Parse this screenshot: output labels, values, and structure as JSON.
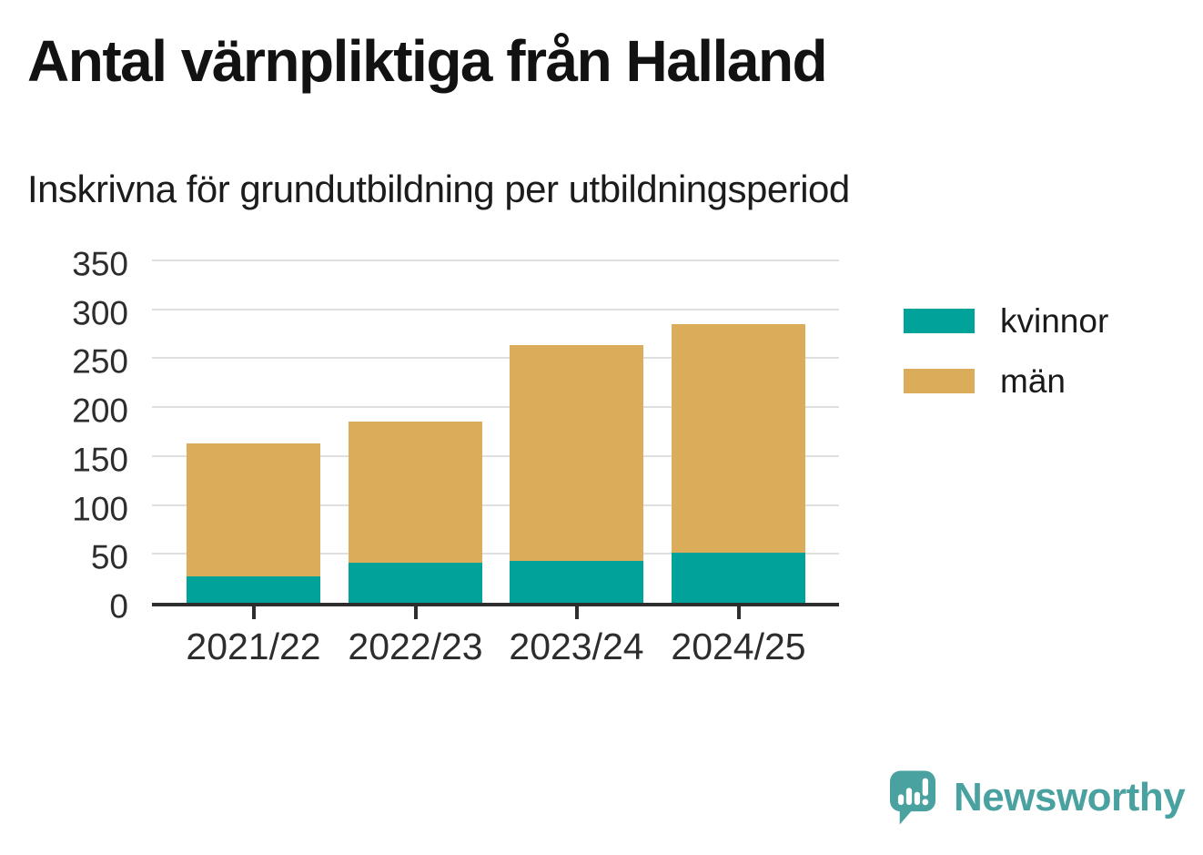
{
  "title": "Antal värnpliktiga från Halland",
  "subtitle": "Inskrivna för grundutbildning per utbildningsperiod",
  "chart_data": {
    "type": "bar",
    "stacked": true,
    "title": "Antal värnpliktiga från Halland",
    "subtitle": "Inskrivna för grundutbildning per utbildningsperiod",
    "categories": [
      "2021/22",
      "2022/23",
      "2023/24",
      "2024/25"
    ],
    "series": [
      {
        "name": "kvinnor",
        "color": "#00a29a",
        "values": [
          27,
          41,
          43,
          51
        ]
      },
      {
        "name": "män",
        "color": "#dbac5a",
        "values": [
          136,
          144,
          220,
          234
        ]
      }
    ],
    "totals": [
      163,
      185,
      263,
      285
    ],
    "xlabel": "",
    "ylabel": "",
    "yticks": [
      0,
      50,
      100,
      150,
      200,
      250,
      300,
      350
    ],
    "ylim": [
      0,
      350
    ],
    "grid": true,
    "gridline_color": "#dfdfdf",
    "axis_color": "#2e2e2e",
    "legend_position": "right"
  },
  "branding": {
    "name": "Newsworthy",
    "color": "#4aa2a0"
  }
}
